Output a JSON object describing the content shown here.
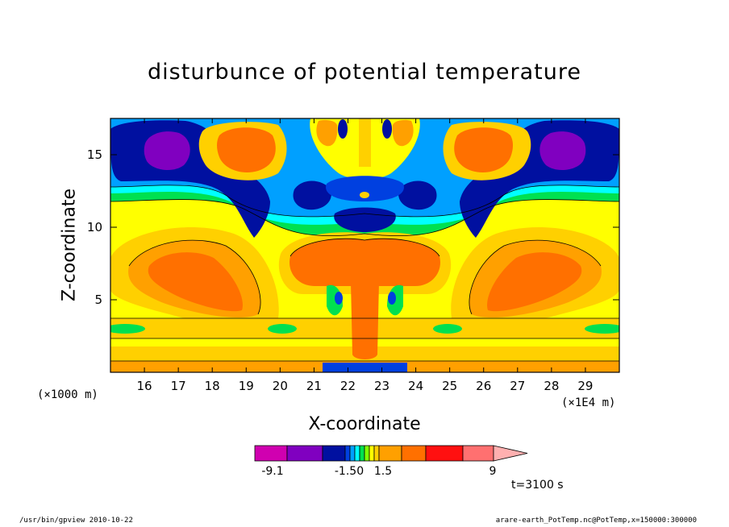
{
  "chart_data": {
    "type": "heatmap",
    "title": "disturbunce of potential temperature",
    "xlabel": "X-coordinate",
    "ylabel": "Z-coordinate",
    "x_unit_left": "(×1000 m)",
    "x_unit_right": "(×1E4 m)",
    "x_ticks": [
      "16",
      "17",
      "18",
      "19",
      "20",
      "21",
      "22",
      "23",
      "24",
      "25",
      "26",
      "27",
      "28",
      "29"
    ],
    "y_ticks": [
      "5",
      "10",
      "15"
    ],
    "xlim": [
      15,
      30
    ],
    "ylim": [
      0,
      17.5
    ],
    "colorbar": {
      "labels": [
        "-9.1",
        "-1.50",
        "1.5",
        "9"
      ],
      "colors": [
        "#d000b0",
        "#8000c0",
        "#0010a0",
        "#0040e0",
        "#00a0ff",
        "#00ffff",
        "#00e050",
        "#80ff00",
        "#ffff00",
        "#ffd000",
        "#ffa000",
        "#ff7000",
        "#ff1010",
        "#ff7070",
        "#ffb0b0"
      ]
    }
  },
  "time_label": "t=3100 s",
  "footer_left": "/usr/bin/gpview   2010-10-22",
  "footer_right": "arare-earth_PotTemp.nc@PotTemp,x=150000:300000"
}
